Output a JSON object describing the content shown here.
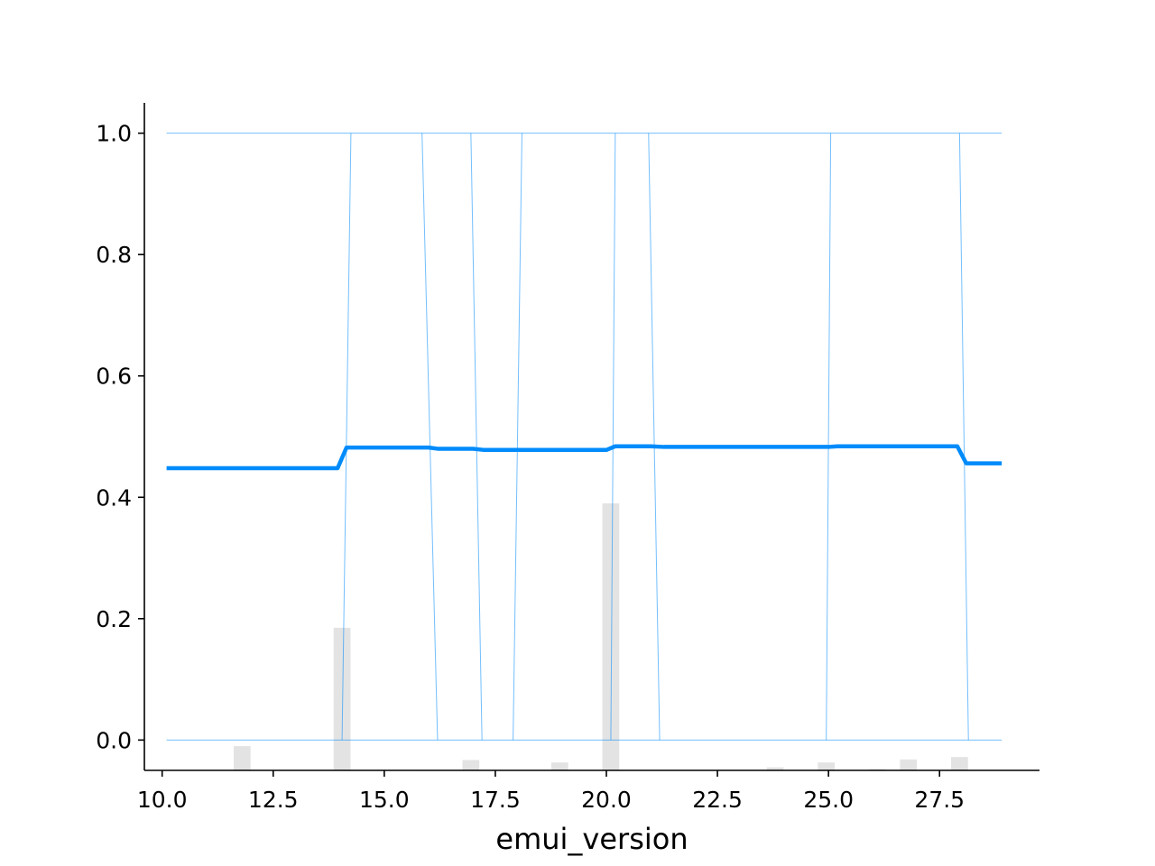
{
  "chart_data": {
    "type": "line",
    "title": "",
    "xlabel": "emui_version",
    "ylabel": "",
    "xlim": [
      9.6,
      29.75
    ],
    "ylim": [
      -0.05,
      1.05
    ],
    "xticks": [
      10.0,
      12.5,
      15.0,
      17.5,
      20.0,
      22.5,
      25.0,
      27.5
    ],
    "xtick_labels": [
      "10.0",
      "12.5",
      "15.0",
      "17.5",
      "20.0",
      "22.5",
      "25.0",
      "27.5"
    ],
    "yticks": [
      0.0,
      0.2,
      0.4,
      0.6,
      0.8,
      1.0
    ],
    "ytick_labels": [
      "0.0",
      "0.2",
      "0.4",
      "0.6",
      "0.8",
      "1.0"
    ],
    "grid": false,
    "legend": "none",
    "colors": {
      "mean_line": "#008bfb",
      "ice_lines": "#008bfb",
      "histogram": "#e3e3e3",
      "axis": "#000000"
    },
    "mean_line": {
      "x": [
        10.1,
        13.95,
        14.15,
        16.0,
        16.2,
        17.0,
        17.25,
        20.0,
        20.2,
        21.0,
        21.3,
        25.0,
        25.2,
        27.9,
        28.1,
        28.9
      ],
      "y": [
        0.448,
        0.448,
        0.482,
        0.482,
        0.48,
        0.48,
        0.478,
        0.478,
        0.484,
        0.484,
        0.483,
        0.483,
        0.484,
        0.484,
        0.456,
        0.456
      ]
    },
    "ice_lines": [
      {
        "x": [
          10.1,
          28.9
        ],
        "y": [
          1.0,
          1.0
        ]
      },
      {
        "x": [
          10.1,
          28.9
        ],
        "y": [
          0.0,
          0.0
        ]
      },
      {
        "x": [
          14.05,
          14.25
        ],
        "y": [
          0.0,
          1.0
        ]
      },
      {
        "x": [
          15.85,
          16.2
        ],
        "y": [
          1.0,
          0.0
        ]
      },
      {
        "x": [
          16.95,
          17.2
        ],
        "y": [
          1.0,
          0.0
        ]
      },
      {
        "x": [
          17.9,
          18.1
        ],
        "y": [
          0.0,
          1.0
        ]
      },
      {
        "x": [
          20.1,
          20.2
        ],
        "y": [
          0.0,
          1.0
        ]
      },
      {
        "x": [
          20.95,
          21.2
        ],
        "y": [
          1.0,
          0.0
        ]
      },
      {
        "x": [
          24.95,
          25.05
        ],
        "y": [
          0.0,
          1.0
        ]
      },
      {
        "x": [
          27.95,
          28.15
        ],
        "y": [
          1.0,
          0.0
        ]
      }
    ],
    "histogram": {
      "bin_width": 0.38,
      "x": [
        11.8,
        14.05,
        15.0,
        15.95,
        16.95,
        18.95,
        20.1,
        23.8,
        24.95,
        26.1,
        26.8,
        27.95
      ],
      "y": [
        0.04,
        0.235,
        0.001,
        0.001,
        0.017,
        0.013,
        0.44,
        0.005,
        0.013,
        0.002,
        0.018,
        0.022
      ]
    }
  }
}
